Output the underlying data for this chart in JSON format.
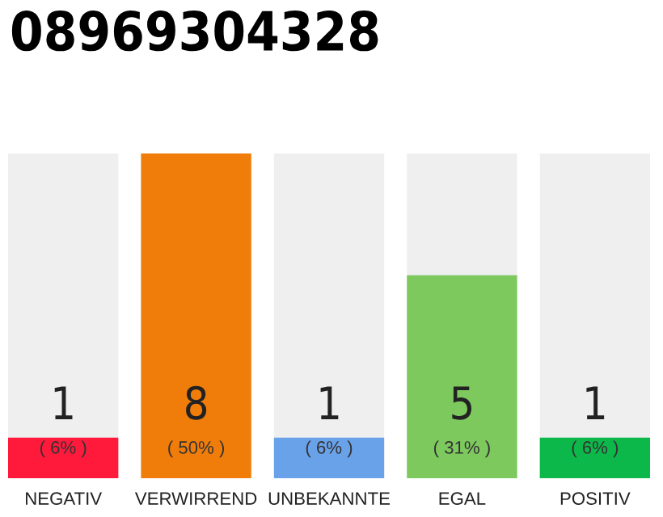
{
  "chart_data": {
    "type": "bar",
    "title": "08969304328",
    "categories": [
      "NEGATIV",
      "VERWIRREND",
      "UNBEKANNTE",
      "EGAL",
      "POSITIV"
    ],
    "values": [
      1,
      8,
      1,
      5,
      1
    ],
    "colors": [
      "#ff1a3c",
      "#f07d0a",
      "#6aa2ea",
      "#7dc95e",
      "#0db84a"
    ],
    "value_labels": [
      "1\n( 6% )",
      "8\n( 50% )",
      "1\n( 6% )",
      "5\n( 31% )",
      "1\n( 6% )"
    ],
    "grid": false,
    "legend": false
  }
}
